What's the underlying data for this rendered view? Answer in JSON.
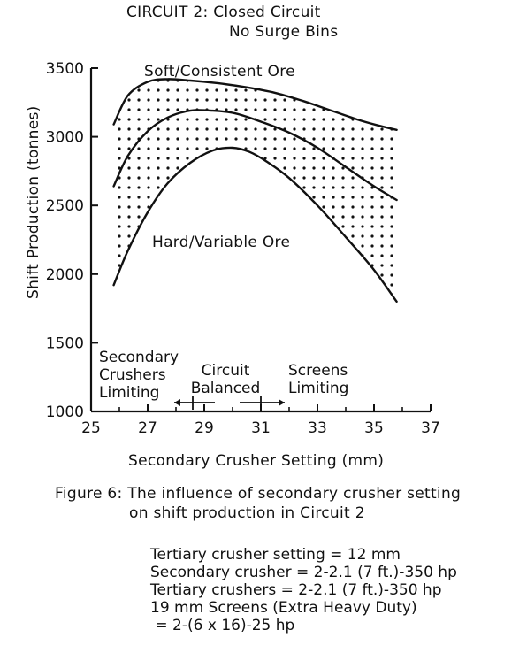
{
  "header": {
    "circuit_title": "CIRCUIT 2: Closed Circuit",
    "circuit_subtitle": "No Surge Bins"
  },
  "caption": {
    "line1": "Figure 6: The influence of secondary crusher setting",
    "line2": "on shift production in Circuit 2"
  },
  "regions": {
    "left": [
      "Secondary",
      "Crushers",
      "Limiting"
    ],
    "middle": [
      "Circuit",
      "Balanced"
    ],
    "right": [
      "Screens",
      "Limiting"
    ]
  },
  "notes": [
    "Tertiary crusher setting = 12 mm",
    "Secondary crusher = 2-2.1 (7 ft.)-350 hp",
    "Tertiary crushers = 2-2.1 (7 ft.)-350 hp",
    "19 mm Screens (Extra Heavy Duty)",
    " = 2-(6 x 16)-25 hp"
  ],
  "colors": {
    "ink": "#111111",
    "background": "#ffffff"
  },
  "chart_data": {
    "type": "line",
    "title": "",
    "xlabel": "Secondary Crusher Setting (mm)",
    "ylabel": "Shift Production (tonnes)",
    "xlim": [
      25,
      37
    ],
    "ylim": [
      1000,
      3500
    ],
    "x_ticks": [
      25,
      27,
      29,
      31,
      33,
      35,
      37
    ],
    "y_ticks": [
      1000,
      1500,
      2000,
      2500,
      3000,
      3500
    ],
    "grid": false,
    "shaded_band": "dotted region between upper and lower curves",
    "series": [
      {
        "name": "Soft/Consistent Ore",
        "x": [
          25.8,
          26.3,
          27.0,
          27.7,
          28.5,
          29.5,
          30.5,
          31.5,
          32.5,
          33.5,
          34.5,
          35.2,
          35.8
        ],
        "values": [
          3090,
          3300,
          3400,
          3420,
          3410,
          3390,
          3360,
          3320,
          3260,
          3190,
          3120,
          3080,
          3050
        ]
      },
      {
        "name": "",
        "x": [
          25.8,
          26.3,
          27.0,
          27.7,
          28.5,
          29.3,
          30.1,
          31.0,
          32.0,
          33.0,
          34.0,
          35.0,
          35.8
        ],
        "values": [
          2640,
          2860,
          3040,
          3140,
          3190,
          3190,
          3170,
          3110,
          3030,
          2920,
          2780,
          2640,
          2540
        ]
      },
      {
        "name": "Hard/Variable Ore",
        "x": [
          25.8,
          26.3,
          27.0,
          27.7,
          28.5,
          29.3,
          30.0,
          30.6,
          31.2,
          32.0,
          33.0,
          34.0,
          35.0,
          35.8
        ],
        "values": [
          1920,
          2170,
          2450,
          2660,
          2810,
          2900,
          2920,
          2890,
          2820,
          2700,
          2500,
          2270,
          2030,
          1800
        ]
      }
    ]
  }
}
